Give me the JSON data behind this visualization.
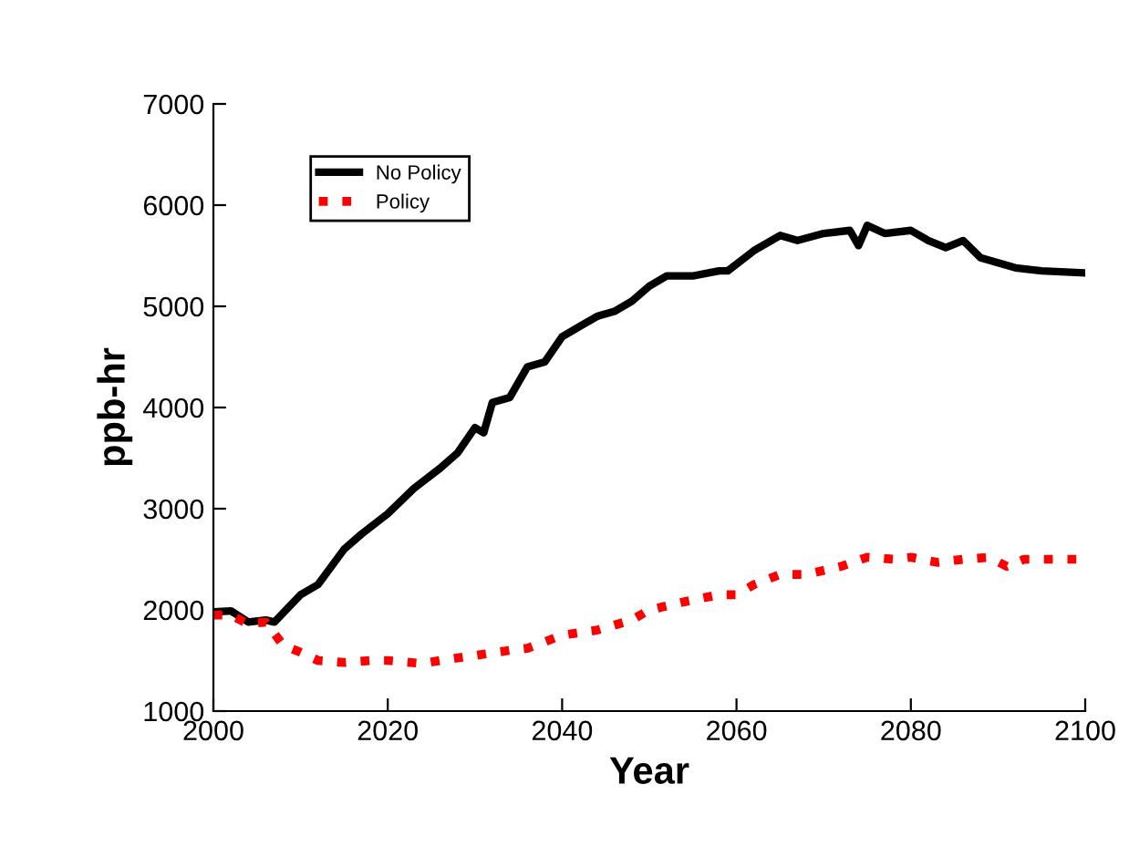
{
  "chart_data": {
    "type": "line",
    "xlabel": "Year",
    "ylabel": "ppb-hr",
    "xlim": [
      2000,
      2100
    ],
    "xticks": [
      2000,
      2020,
      2040,
      2060,
      2080,
      2100
    ],
    "ylim": [
      1000,
      7000
    ],
    "yticks": [
      1000,
      2000,
      3000,
      4000,
      5000,
      6000,
      7000
    ],
    "grid": false,
    "legend": "top left",
    "series": [
      {
        "name": "No Policy",
        "color": "#000000",
        "line_style": "solid",
        "x": [
          2000,
          2002,
          2004,
          2006,
          2007,
          2010,
          2012,
          2015,
          2017,
          2020,
          2023,
          2026,
          2028,
          2030,
          2031,
          2032,
          2034,
          2036,
          2038,
          2040,
          2042,
          2044,
          2046,
          2048,
          2050,
          2052,
          2055,
          2058,
          2059,
          2062,
          2065,
          2067,
          2070,
          2073,
          2074,
          2075,
          2077,
          2080,
          2082,
          2084,
          2086,
          2088,
          2090,
          2092,
          2095,
          2100
        ],
        "values": [
          1980,
          1990,
          1880,
          1900,
          1880,
          2150,
          2250,
          2600,
          2750,
          2950,
          3200,
          3400,
          3550,
          3800,
          3750,
          4050,
          4100,
          4400,
          4450,
          4700,
          4800,
          4900,
          4950,
          5050,
          5200,
          5300,
          5300,
          5350,
          5350,
          5550,
          5700,
          5650,
          5720,
          5750,
          5600,
          5800,
          5720,
          5750,
          5650,
          5580,
          5650,
          5480,
          5430,
          5380,
          5350,
          5330
        ]
      },
      {
        "name": "Policy",
        "color": "#ff0000",
        "line_style": "dotted",
        "x": [
          2000,
          2002,
          2004,
          2006,
          2008,
          2010,
          2012,
          2015,
          2018,
          2020,
          2024,
          2026,
          2030,
          2034,
          2036,
          2040,
          2044,
          2048,
          2050,
          2054,
          2058,
          2060,
          2062,
          2065,
          2068,
          2072,
          2075,
          2078,
          2080,
          2083,
          2086,
          2089,
          2091,
          2093,
          2100
        ],
        "values": [
          1950,
          1950,
          1860,
          1880,
          1650,
          1580,
          1500,
          1480,
          1500,
          1500,
          1470,
          1500,
          1550,
          1600,
          1620,
          1750,
          1800,
          1900,
          2000,
          2080,
          2150,
          2150,
          2250,
          2350,
          2350,
          2430,
          2520,
          2500,
          2520,
          2470,
          2500,
          2520,
          2430,
          2500,
          2500
        ]
      }
    ]
  }
}
